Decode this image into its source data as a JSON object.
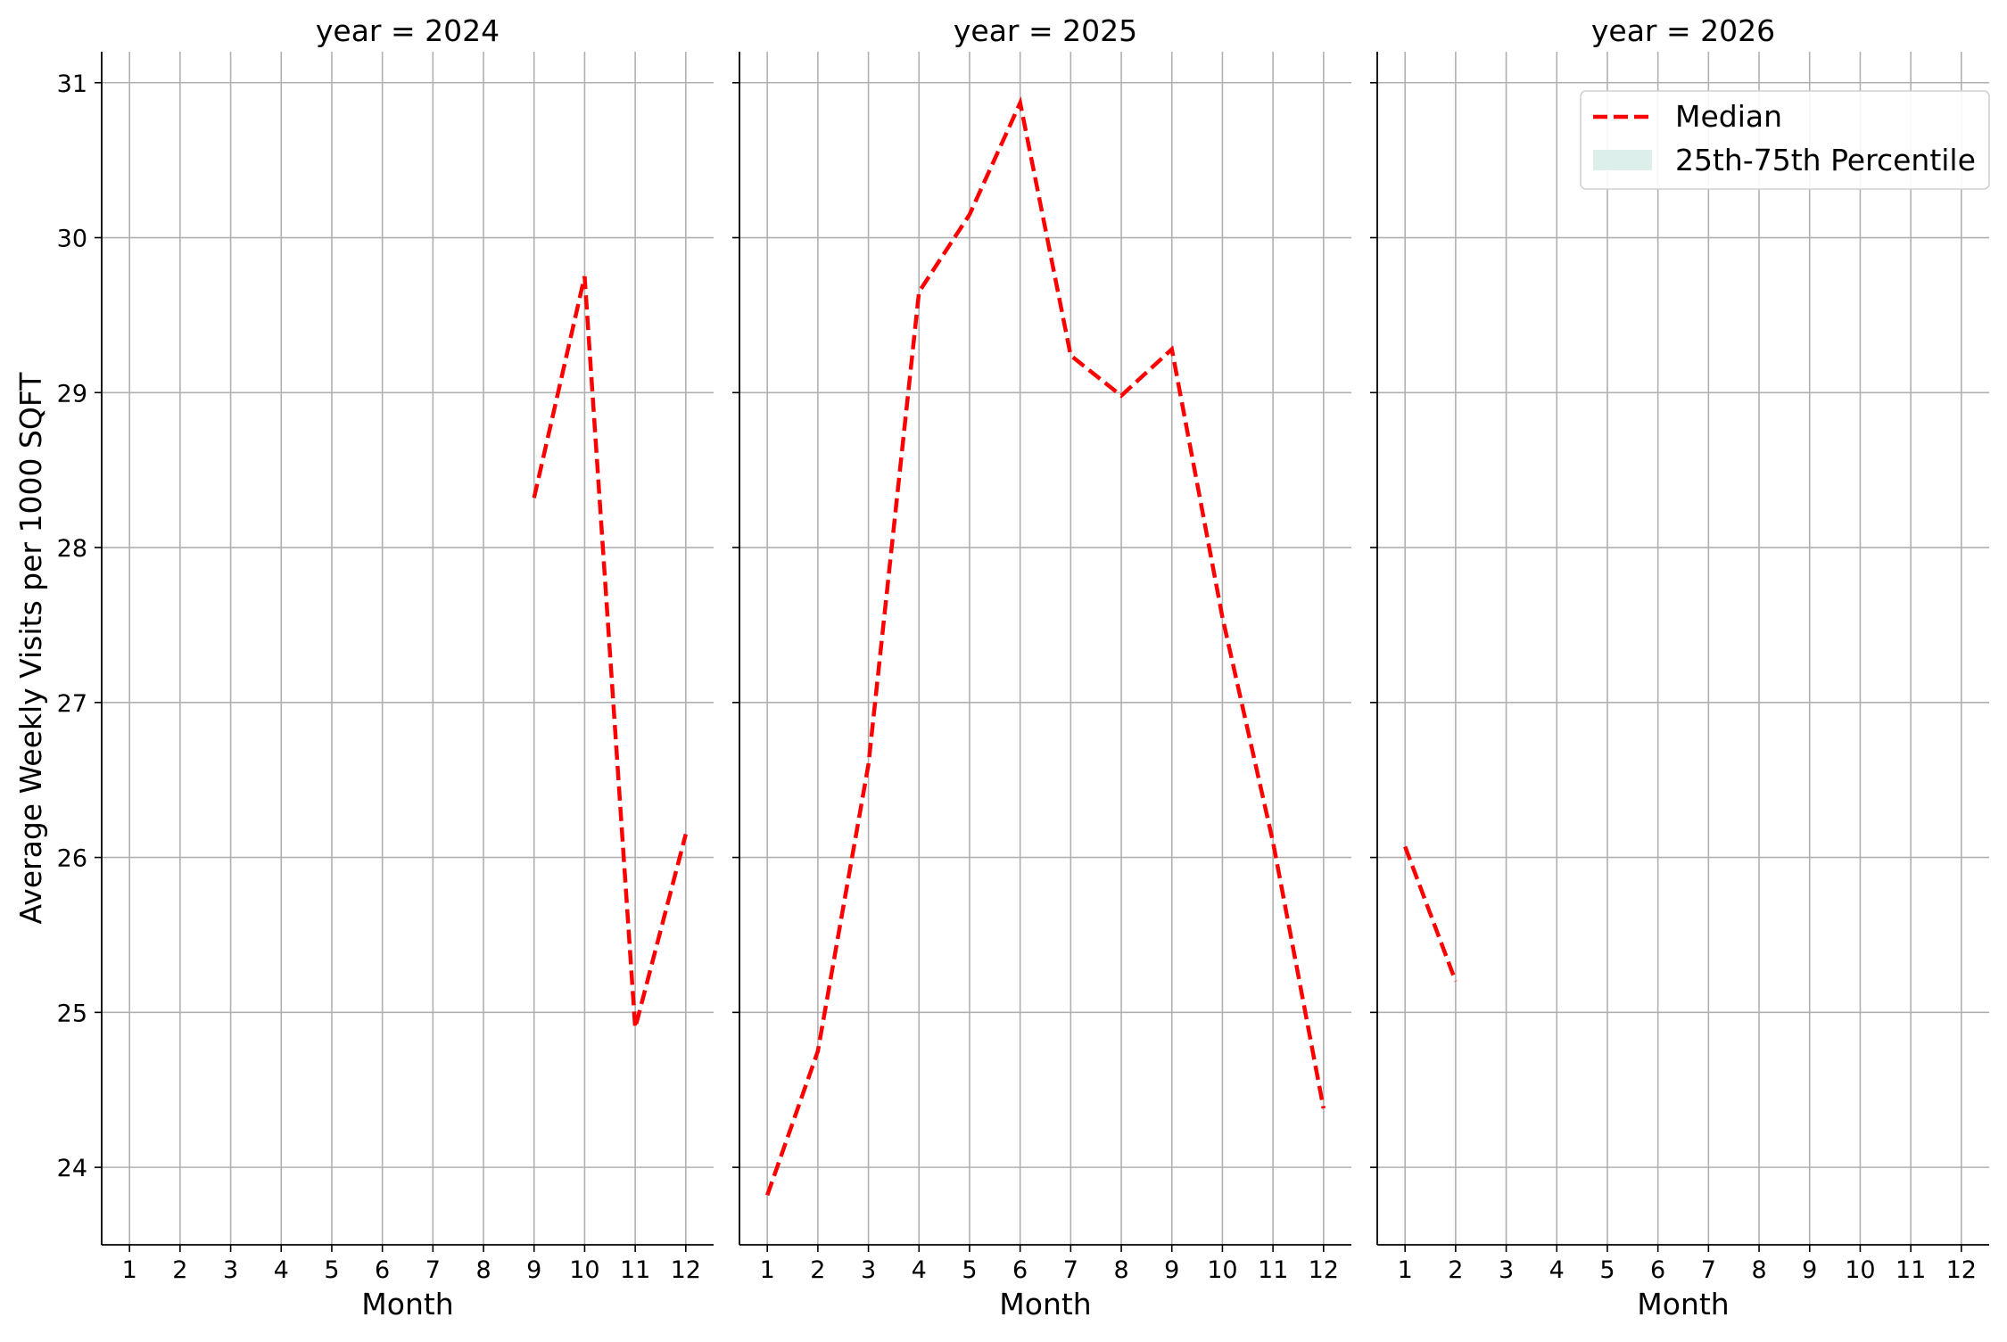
{
  "chart_data": {
    "type": "line",
    "ylabel": "Average Weekly Visits per 1000 SQFT",
    "xlabel": "Month",
    "ylim": [
      23.5,
      31.2
    ],
    "xlim": [
      0.45,
      12.55
    ],
    "yticks": [
      24,
      25,
      26,
      27,
      28,
      29,
      30,
      31
    ],
    "xticks": [
      1,
      2,
      3,
      4,
      5,
      6,
      7,
      8,
      9,
      10,
      11,
      12
    ],
    "grid": true,
    "legend": {
      "placement": "top-right of last panel",
      "entries": [
        {
          "label": "Median",
          "kind": "dashed-line",
          "color": "#ff0000"
        },
        {
          "label": "25th-75th Percentile",
          "kind": "band",
          "color": "#dcefea"
        }
      ]
    },
    "colors": {
      "median": "#ff0000",
      "band": "#dcefea",
      "grid": "#b0b0b0"
    },
    "panels": [
      {
        "title": "year = 2024",
        "series": [
          {
            "name": "Median",
            "x": [
              9,
              10,
              11,
              12
            ],
            "y": [
              28.32,
              29.75,
              24.9,
              26.15
            ]
          }
        ]
      },
      {
        "title": "year = 2025",
        "series": [
          {
            "name": "Median",
            "x": [
              1,
              2,
              3,
              4,
              5,
              6,
              7,
              8,
              9,
              10,
              11,
              12
            ],
            "y": [
              23.82,
              24.75,
              26.6,
              29.65,
              30.15,
              30.87,
              29.24,
              28.98,
              29.28,
              27.55,
              26.1,
              24.38
            ]
          }
        ]
      },
      {
        "title": "year = 2026",
        "series": [
          {
            "name": "Median",
            "x": [
              1,
              2
            ],
            "y": [
              26.07,
              25.2
            ]
          }
        ]
      }
    ]
  }
}
